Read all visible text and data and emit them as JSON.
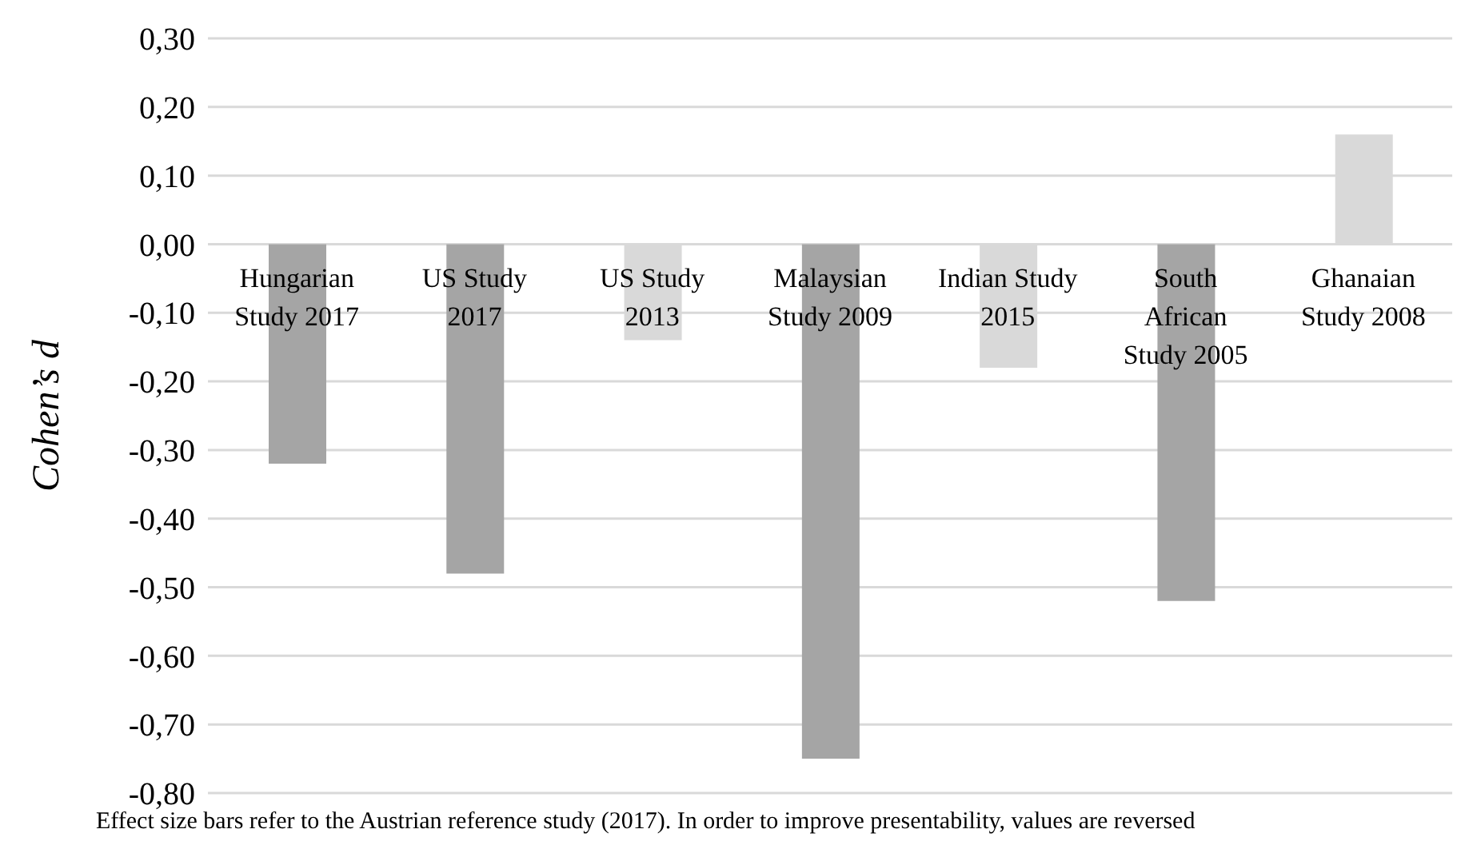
{
  "chart_data": {
    "type": "bar",
    "categories": [
      "Hungarian Study 2017",
      "US Study 2017",
      "US Study 2013",
      "Malaysian Study 2009",
      "Indian Study 2015",
      "South African Study 2005",
      "Ghanaian Study 2008"
    ],
    "values": [
      -0.32,
      -0.48,
      -0.14,
      -0.75,
      -0.18,
      -0.52,
      0.16
    ],
    "colors": [
      "#a5a5a5",
      "#a5a5a5",
      "#d9d9d9",
      "#a5a5a5",
      "#d9d9d9",
      "#a5a5a5",
      "#d9d9d9"
    ],
    "ylabel": "Cohen’s d",
    "ylim": [
      -0.8,
      0.3
    ],
    "yticks": [
      {
        "value": 0.3,
        "label": "0,30"
      },
      {
        "value": 0.2,
        "label": "0,20"
      },
      {
        "value": 0.1,
        "label": "0,10"
      },
      {
        "value": 0,
        "label": "0,00"
      },
      {
        "value": -0.1,
        "label": "-0,10"
      },
      {
        "value": -0.2,
        "label": "-0,20"
      },
      {
        "value": -0.3,
        "label": "-0,30"
      },
      {
        "value": -0.4,
        "label": "-0,40"
      },
      {
        "value": -0.5,
        "label": "-0,50"
      },
      {
        "value": -0.6,
        "label": "-0,60"
      },
      {
        "value": -0.7,
        "label": "-0,70"
      },
      {
        "value": -0.8,
        "label": "-0,80"
      }
    ],
    "grid": "y",
    "annotations": [
      "Effect size bars refer to the Austrian reference study (2017). In order to improve presentability, values are reversed"
    ]
  }
}
